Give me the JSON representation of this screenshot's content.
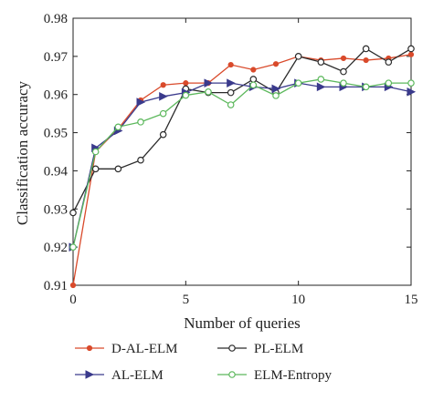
{
  "chart_data": {
    "type": "line",
    "xlabel": "Number of queries",
    "ylabel": "Classification accuracy",
    "xlim": [
      0,
      15
    ],
    "ylim": [
      0.91,
      0.98
    ],
    "x_ticks": [
      "0",
      "5",
      "10",
      "15"
    ],
    "y_ticks": [
      "0.91",
      "0.92",
      "0.93",
      "0.94",
      "0.95",
      "0.96",
      "0.97",
      "0.98"
    ],
    "grid": false,
    "legend_position": "below",
    "x": [
      0,
      1,
      2,
      3,
      4,
      5,
      6,
      7,
      8,
      9,
      10,
      11,
      12,
      13,
      14,
      15
    ],
    "series": [
      {
        "name": "D-AL-ELM",
        "color": "#d94a2b",
        "marker": "dot",
        "values": [
          0.91,
          0.945,
          0.951,
          0.9585,
          0.9625,
          0.963,
          0.963,
          0.9678,
          0.9665,
          0.968,
          0.97,
          0.969,
          0.9695,
          0.969,
          0.9695,
          0.9705
        ]
      },
      {
        "name": "PL-ELM",
        "color": "#2b2b2b",
        "marker": "circle",
        "values": [
          0.929,
          0.9405,
          0.9405,
          0.9428,
          0.9495,
          0.9615,
          0.9605,
          0.9605,
          0.964,
          0.9605,
          0.97,
          0.9685,
          0.966,
          0.972,
          0.9685,
          0.972
        ]
      },
      {
        "name": "AL-ELM",
        "color": "#3a3a8c",
        "marker": "triangle-right",
        "values": [
          0.92,
          0.946,
          0.9505,
          0.958,
          0.9595,
          0.9605,
          0.963,
          0.963,
          0.962,
          0.9615,
          0.963,
          0.962,
          0.962,
          0.962,
          0.962,
          0.9607
        ]
      },
      {
        "name": "ELM-Entropy",
        "color": "#5cb85c",
        "marker": "circle",
        "values": [
          0.92,
          0.945,
          0.9515,
          0.9528,
          0.955,
          0.9598,
          0.9607,
          0.9573,
          0.9625,
          0.9597,
          0.963,
          0.964,
          0.963,
          0.962,
          0.963,
          0.963
        ]
      }
    ]
  }
}
